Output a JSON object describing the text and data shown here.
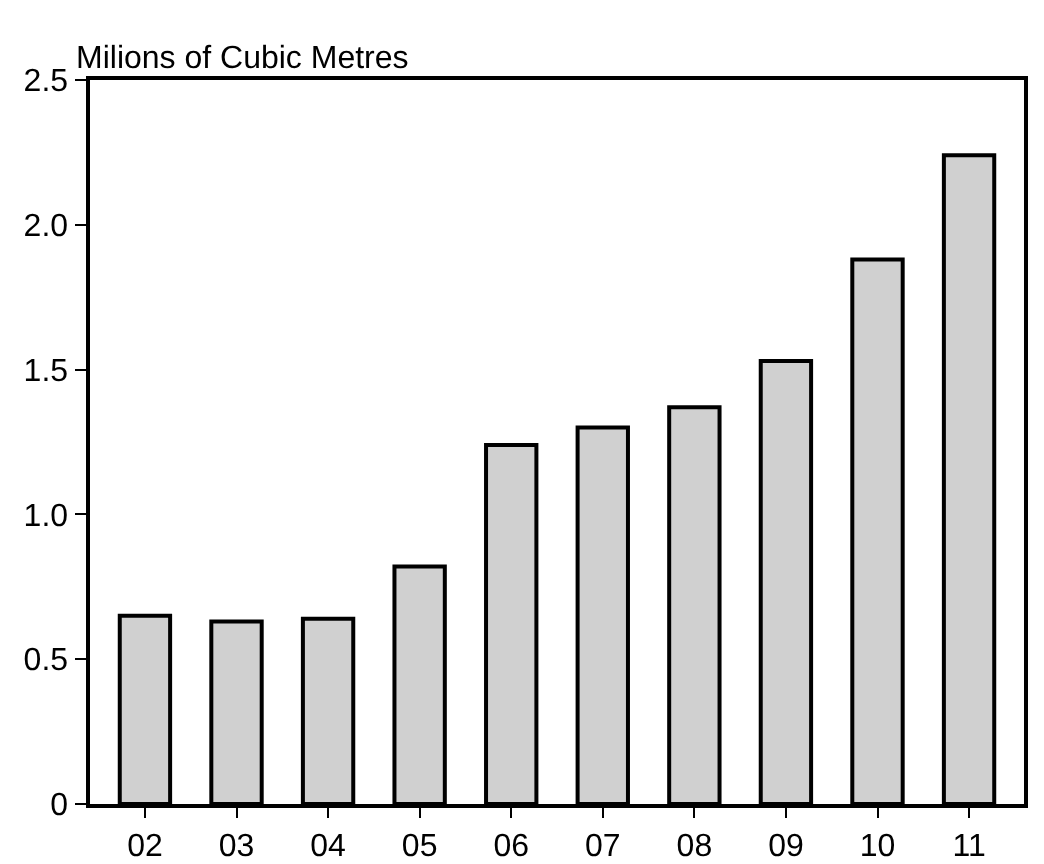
{
  "chart_data": {
    "type": "bar",
    "ylabel": "Milions of Cubic Metres",
    "categories": [
      "02",
      "03",
      "04",
      "05",
      "06",
      "07",
      "08",
      "09",
      "10",
      "11"
    ],
    "values": [
      0.65,
      0.63,
      0.64,
      0.82,
      1.24,
      1.3,
      1.37,
      1.53,
      1.88,
      2.24
    ],
    "color": "#d0d0d0",
    "ylim": [
      0,
      2.5
    ],
    "yticks": [
      0,
      {
        "value": 0.5,
        "label": "0.5"
      },
      {
        "value": 1,
        "label": "1.0"
      },
      {
        "value": 1.5,
        "label": "1.5"
      },
      {
        "value": 2,
        "label": "2.0"
      },
      {
        "value": 2.5,
        "label": "2.5"
      }
    ],
    "grid": false
  }
}
